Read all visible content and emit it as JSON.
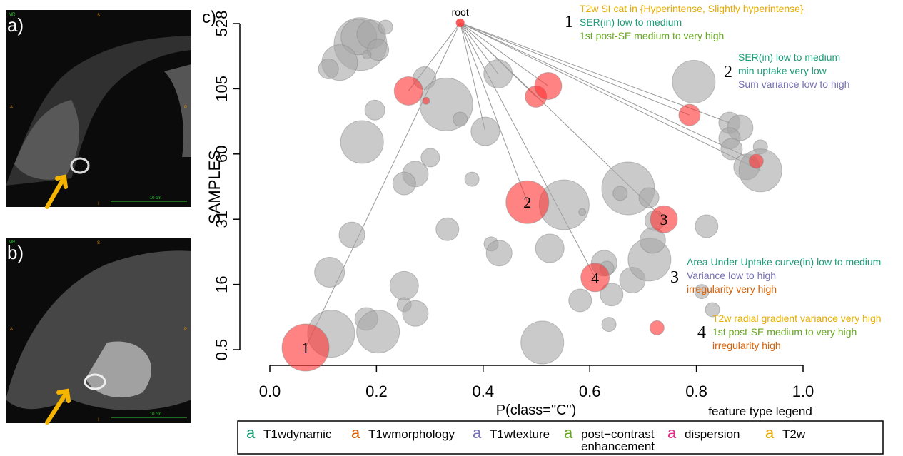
{
  "images": [
    {
      "panel": "a)",
      "labels": [
        "MR",
        "S",
        "A",
        "P",
        "I",
        "10 cm"
      ]
    },
    {
      "panel": "b)",
      "labels": [
        "MR",
        "S",
        "A",
        "P",
        "I",
        "10 cm"
      ]
    }
  ],
  "chart_data": {
    "type": "bubble",
    "panel": "c)",
    "x_label": "P(class=\"C\")",
    "y_label": "SAMPLES",
    "xlim": [
      0,
      1
    ],
    "xticks": [
      {
        "value": 0,
        "label": "0.0"
      },
      {
        "value": 0.2,
        "label": "0.2"
      },
      {
        "value": 0.4,
        "label": "0.4"
      },
      {
        "value": 0.6,
        "label": "0.6"
      },
      {
        "value": 0.8,
        "label": "0.8"
      },
      {
        "value": 1,
        "label": "1.0"
      }
    ],
    "ylim": [
      0.5,
      528
    ],
    "yticks": [
      0.5,
      16,
      31,
      60,
      105,
      528
    ],
    "root": {
      "label": "root",
      "x": 0.357,
      "y": 533,
      "size": 6,
      "color": "#ff3030"
    },
    "series": [
      {
        "color": "#a6a6a6",
        "x": [
          0.17,
          0.167,
          0.19,
          0.217,
          0.203,
          0.131,
          0.11,
          0.182,
          0.29,
          0.428,
          0.331,
          0.197,
          0.173,
          0.357,
          0.404,
          0.301,
          0.273,
          0.252,
          0.379,
          0.154,
          0.333,
          0.415,
          0.43,
          0.525,
          0.112,
          0.252,
          0.252,
          0.273,
          0.181,
          0.115,
          0.203,
          0.511,
          0.636,
          0.582,
          0.641,
          0.627,
          0.632,
          0.68,
          0.712,
          0.718,
          0.722,
          0.672,
          0.657,
          0.711,
          0.552,
          0.819,
          0.586,
          0.795,
          0.862,
          0.882,
          0.862,
          0.866,
          0.92,
          0.894,
          0.92,
          0.81,
          0.83
        ],
        "y": [
          395,
          441,
          459,
          505,
          358,
          275,
          234,
          326,
          174,
          202,
          94.2,
          90.3,
          68.3,
          84,
          75.6,
          58.4,
          51.1,
          46.9,
          48.8,
          27.4,
          28.7,
          25.3,
          23.2,
          24.3,
          18.8,
          15.7,
          11.2,
          9.1,
          7.8,
          4.3,
          4.8,
          2.2,
          6.5,
          12.2,
          13.6,
          20.9,
          19.7,
          17.0,
          21.7,
          26.1,
          30.7,
          44.7,
          42.5,
          40.6,
          37.4,
          29.4,
          34.2,
          151,
          81.5,
          78.1,
          70.8,
          63.4,
          64.9,
          54.3,
          52.7,
          14.3,
          10.0
        ],
        "size": [
          37,
          25,
          20,
          10,
          15,
          25,
          14,
          6,
          16,
          20,
          37,
          14,
          30,
          10,
          20,
          13,
          18,
          16,
          10,
          18,
          16,
          10,
          18,
          20,
          21,
          20,
          10,
          18,
          16,
          33,
          30,
          30,
          10,
          16,
          16,
          18,
          10,
          18,
          30,
          18,
          14,
          37,
          10,
          14,
          35,
          16,
          5,
          30,
          15,
          18,
          15,
          15,
          10,
          18,
          30,
          10,
          10
        ]
      },
      {
        "color": "#ff3030",
        "x": [
          0.067,
          0.483,
          0.739,
          0.61,
          0.26,
          0.293,
          0.499,
          0.522,
          0.787,
          0.912,
          0.726
        ],
        "y": [
          1.0,
          38.6,
          31,
          17.6,
          103.5,
          96.7,
          99.6,
          123,
          86.9,
          56.8,
          5.7
        ],
        "size": [
          33,
          30,
          19,
          20,
          20,
          5,
          15,
          19,
          15,
          10,
          10
        ],
        "labels": [
          "1",
          "2",
          "3",
          "4",
          null,
          null,
          null,
          null,
          null,
          null,
          null
        ]
      }
    ],
    "root_edges": [
      [
        1,
        0
      ],
      [
        1,
        1
      ],
      [
        1,
        2
      ],
      [
        1,
        3
      ],
      [
        1,
        4
      ],
      [
        1,
        6
      ],
      [
        1,
        7
      ],
      [
        1,
        8
      ],
      [
        1,
        9
      ],
      [
        0,
        9
      ],
      [
        0,
        14
      ],
      [
        0,
        48
      ],
      [
        0,
        54
      ]
    ],
    "rules": [
      {
        "number": "1",
        "lines": [
          {
            "text": "T2w SI cat in {Hyperintense, Slightly hyperintense}",
            "feature": "T2w"
          },
          {
            "text": "SER(in) low to medium",
            "feature": "T1wdynamic"
          },
          {
            "text": "1st post-SE medium to very high",
            "feature": "post−contrast enhancement"
          }
        ]
      },
      {
        "number": "2",
        "lines": [
          {
            "text": "SER(in) low to medium",
            "feature": "T1wdynamic"
          },
          {
            "text": "min uptake very low",
            "feature": "T1wdynamic"
          },
          {
            "text": "Sum variance low to high",
            "feature": "T1wtexture"
          }
        ]
      },
      {
        "number": "3",
        "lines": [
          {
            "text": "Area Under Uptake curve(in) low to medium",
            "feature": "T1wdynamic"
          },
          {
            "text": "Variance low to high",
            "feature": "T1wtexture"
          },
          {
            "text": "irregularity very high",
            "feature": "T1wmorphology"
          }
        ]
      },
      {
        "number": "4",
        "lines": [
          {
            "text": "T2w radial gradient variance very high",
            "feature": "T2w"
          },
          {
            "text": "1st post-SE medium to very high",
            "feature": "post−contrast enhancement"
          },
          {
            "text": "irregularity high",
            "feature": "T1wmorphology"
          }
        ]
      }
    ],
    "legend": {
      "title": "feature type legend",
      "glyph": "a",
      "items": [
        {
          "name": "T1wdynamic",
          "color": "#1b9e77"
        },
        {
          "name": "T1wmorphology",
          "color": "#d95f02"
        },
        {
          "name": "T1wtexture",
          "color": "#7570b3"
        },
        {
          "name": "post−contrast enhancement",
          "color": "#66a61e"
        },
        {
          "name": "dispersion",
          "color": "#e7298a"
        },
        {
          "name": "T2w",
          "color": "#e6ab02"
        }
      ]
    }
  }
}
